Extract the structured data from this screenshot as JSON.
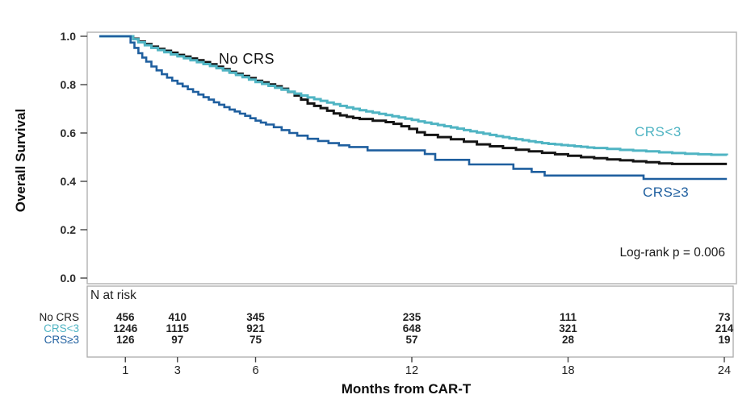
{
  "figure": {
    "y_axis": {
      "label": "Overall Survival",
      "ticks": [
        "1.0",
        "0.8",
        "0.6",
        "0.4",
        "0.2",
        "0.0"
      ]
    },
    "x_axis": {
      "label": "Months from CAR-T",
      "ticks": [
        "1",
        "3",
        "6",
        "12",
        "18",
        "24"
      ]
    },
    "annotations": {
      "no_crs": "No CRS",
      "crs_lt3": "CRS<3",
      "crs_ge3": "CRS≥3",
      "logrank": "Log-rank p = 0.006"
    },
    "colors": {
      "no_crs": "#141414",
      "crs_lt3": "#4fb4c3",
      "crs_ge3": "#1f5f9f",
      "frame": "#b5b5b5"
    }
  },
  "chart_data": {
    "type": "line",
    "subtype": "kaplan-meier-step",
    "title": "",
    "xlabel": "Months from CAR-T",
    "ylabel": "Overall Survival",
    "xlim": [
      0,
      24.3
    ],
    "ylim": [
      0,
      1.0
    ],
    "x_ticks": [
      1,
      3,
      6,
      12,
      18,
      24
    ],
    "y_ticks": [
      1.0,
      0.8,
      0.6,
      0.4,
      0.2,
      0.0
    ],
    "grid": false,
    "legend_position": "curve-labels-inline",
    "annotations": [
      {
        "text": "Log-rank p = 0.006",
        "position": "lower-right"
      }
    ],
    "series": [
      {
        "name": "No CRS",
        "color": "#141414",
        "width": 3,
        "points": [
          [
            0,
            1.0
          ],
          [
            1.1,
            1.0
          ],
          [
            1.3,
            0.99
          ],
          [
            1.5,
            0.978
          ],
          [
            1.75,
            0.968
          ],
          [
            2,
            0.957
          ],
          [
            2.25,
            0.948
          ],
          [
            2.5,
            0.94
          ],
          [
            2.75,
            0.932
          ],
          [
            3,
            0.923
          ],
          [
            3.25,
            0.916
          ],
          [
            3.5,
            0.908
          ],
          [
            3.75,
            0.901
          ],
          [
            4,
            0.893
          ],
          [
            4.25,
            0.884
          ],
          [
            4.5,
            0.874
          ],
          [
            4.75,
            0.864
          ],
          [
            5,
            0.853
          ],
          [
            5.25,
            0.845
          ],
          [
            5.5,
            0.836
          ],
          [
            5.75,
            0.827
          ],
          [
            6,
            0.816
          ],
          [
            6.25,
            0.809
          ],
          [
            6.5,
            0.801
          ],
          [
            6.75,
            0.793
          ],
          [
            7,
            0.783
          ],
          [
            7.25,
            0.77
          ],
          [
            7.5,
            0.755
          ],
          [
            7.75,
            0.738
          ],
          [
            8,
            0.722
          ],
          [
            8.25,
            0.712
          ],
          [
            8.5,
            0.703
          ],
          [
            8.75,
            0.692
          ],
          [
            9,
            0.681
          ],
          [
            9.25,
            0.673
          ],
          [
            9.5,
            0.667
          ],
          [
            9.75,
            0.662
          ],
          [
            10,
            0.658
          ],
          [
            10.5,
            0.651
          ],
          [
            11,
            0.645
          ],
          [
            11.3,
            0.638
          ],
          [
            11.6,
            0.628
          ],
          [
            11.9,
            0.617
          ],
          [
            12.2,
            0.603
          ],
          [
            12.5,
            0.592
          ],
          [
            13,
            0.583
          ],
          [
            13.5,
            0.574
          ],
          [
            14,
            0.564
          ],
          [
            14.5,
            0.553
          ],
          [
            15,
            0.545
          ],
          [
            15.5,
            0.538
          ],
          [
            16,
            0.531
          ],
          [
            16.5,
            0.524
          ],
          [
            17,
            0.518
          ],
          [
            17.5,
            0.512
          ],
          [
            18,
            0.506
          ],
          [
            18.5,
            0.5
          ],
          [
            19,
            0.496
          ],
          [
            19.5,
            0.491
          ],
          [
            20,
            0.487
          ],
          [
            20.5,
            0.483
          ],
          [
            21,
            0.479
          ],
          [
            21.5,
            0.474
          ],
          [
            22,
            0.472
          ],
          [
            24.1,
            0.472
          ]
        ]
      },
      {
        "name": "CRS<3",
        "color": "#4fb4c3",
        "width": 3,
        "points": [
          [
            0,
            1.0
          ],
          [
            1.1,
            1.0
          ],
          [
            1.3,
            0.988
          ],
          [
            1.5,
            0.975
          ],
          [
            1.75,
            0.963
          ],
          [
            2,
            0.952
          ],
          [
            2.25,
            0.943
          ],
          [
            2.5,
            0.934
          ],
          [
            2.75,
            0.925
          ],
          [
            3,
            0.917
          ],
          [
            3.25,
            0.909
          ],
          [
            3.5,
            0.901
          ],
          [
            3.75,
            0.893
          ],
          [
            4,
            0.885
          ],
          [
            4.25,
            0.877
          ],
          [
            4.5,
            0.868
          ],
          [
            4.75,
            0.859
          ],
          [
            5,
            0.849
          ],
          [
            5.25,
            0.84
          ],
          [
            5.5,
            0.831
          ],
          [
            5.75,
            0.821
          ],
          [
            6,
            0.811
          ],
          [
            6.25,
            0.803
          ],
          [
            6.5,
            0.795
          ],
          [
            6.75,
            0.787
          ],
          [
            7,
            0.779
          ],
          [
            7.25,
            0.771
          ],
          [
            7.5,
            0.763
          ],
          [
            7.75,
            0.755
          ],
          [
            8,
            0.747
          ],
          [
            8.25,
            0.74
          ],
          [
            8.5,
            0.733
          ],
          [
            8.75,
            0.726
          ],
          [
            9,
            0.719
          ],
          [
            9.25,
            0.712
          ],
          [
            9.5,
            0.706
          ],
          [
            9.75,
            0.7
          ],
          [
            10,
            0.694
          ],
          [
            10.25,
            0.689
          ],
          [
            10.5,
            0.684
          ],
          [
            10.75,
            0.679
          ],
          [
            11,
            0.674
          ],
          [
            11.25,
            0.669
          ],
          [
            11.5,
            0.664
          ],
          [
            11.75,
            0.659
          ],
          [
            12,
            0.654
          ],
          [
            12.25,
            0.648
          ],
          [
            12.5,
            0.643
          ],
          [
            12.75,
            0.638
          ],
          [
            13,
            0.633
          ],
          [
            13.25,
            0.628
          ],
          [
            13.5,
            0.623
          ],
          [
            13.75,
            0.618
          ],
          [
            14,
            0.612
          ],
          [
            14.25,
            0.607
          ],
          [
            14.5,
            0.602
          ],
          [
            14.75,
            0.597
          ],
          [
            15,
            0.592
          ],
          [
            15.25,
            0.587
          ],
          [
            15.5,
            0.583
          ],
          [
            15.75,
            0.578
          ],
          [
            16,
            0.574
          ],
          [
            16.25,
            0.57
          ],
          [
            16.5,
            0.566
          ],
          [
            16.75,
            0.562
          ],
          [
            17,
            0.558
          ],
          [
            17.25,
            0.555
          ],
          [
            17.5,
            0.553
          ],
          [
            17.75,
            0.55
          ],
          [
            18,
            0.548
          ],
          [
            18.25,
            0.545
          ],
          [
            18.5,
            0.543
          ],
          [
            18.75,
            0.54
          ],
          [
            19,
            0.538
          ],
          [
            19.5,
            0.534
          ],
          [
            20,
            0.53
          ],
          [
            20.5,
            0.527
          ],
          [
            21,
            0.524
          ],
          [
            21.5,
            0.52
          ],
          [
            22,
            0.517
          ],
          [
            22.5,
            0.514
          ],
          [
            23,
            0.512
          ],
          [
            23.5,
            0.51
          ],
          [
            24.1,
            0.508
          ]
        ]
      },
      {
        "name": "CRS≥3",
        "color": "#1f5f9f",
        "width": 2.6,
        "points": [
          [
            0,
            1.0
          ],
          [
            1.05,
            1.0
          ],
          [
            1.2,
            0.974
          ],
          [
            1.35,
            0.952
          ],
          [
            1.5,
            0.93
          ],
          [
            1.65,
            0.912
          ],
          [
            1.8,
            0.895
          ],
          [
            2,
            0.875
          ],
          [
            2.2,
            0.859
          ],
          [
            2.4,
            0.843
          ],
          [
            2.6,
            0.829
          ],
          [
            2.8,
            0.816
          ],
          [
            3,
            0.804
          ],
          [
            3.2,
            0.793
          ],
          [
            3.4,
            0.781
          ],
          [
            3.6,
            0.77
          ],
          [
            3.8,
            0.759
          ],
          [
            4,
            0.748
          ],
          [
            4.2,
            0.738
          ],
          [
            4.4,
            0.727
          ],
          [
            4.6,
            0.717
          ],
          [
            4.8,
            0.707
          ],
          [
            5,
            0.697
          ],
          [
            5.2,
            0.689
          ],
          [
            5.4,
            0.68
          ],
          [
            5.6,
            0.671
          ],
          [
            5.8,
            0.661
          ],
          [
            6,
            0.651
          ],
          [
            6.2,
            0.643
          ],
          [
            6.4,
            0.635
          ],
          [
            6.7,
            0.624
          ],
          [
            7,
            0.612
          ],
          [
            7.3,
            0.6
          ],
          [
            7.6,
            0.589
          ],
          [
            8,
            0.576
          ],
          [
            8.4,
            0.567
          ],
          [
            8.8,
            0.558
          ],
          [
            9.2,
            0.549
          ],
          [
            9.6,
            0.542
          ],
          [
            10.3,
            0.528
          ],
          [
            12.5,
            0.513
          ],
          [
            12.9,
            0.489
          ],
          [
            14.2,
            0.47
          ],
          [
            15.9,
            0.452
          ],
          [
            16.6,
            0.439
          ],
          [
            17.1,
            0.424
          ],
          [
            20.9,
            0.41
          ],
          [
            24.1,
            0.41
          ]
        ]
      }
    ],
    "risk_table": {
      "title": "N at risk",
      "columns_at_months": [
        1,
        3,
        6,
        12,
        18,
        24
      ],
      "rows": [
        {
          "label": "No CRS",
          "color": "#1a1a1a",
          "values": [
            "456",
            "410",
            "345",
            "235",
            "111",
            "73"
          ]
        },
        {
          "label": "CRS<3",
          "color": "#4fb4c3",
          "values": [
            "1246",
            "1115",
            "921",
            "648",
            "321",
            "214"
          ]
        },
        {
          "label": "CRS≥3",
          "color": "#1f5f9f",
          "values": [
            "126",
            "97",
            "75",
            "57",
            "28",
            "19"
          ]
        }
      ]
    }
  }
}
